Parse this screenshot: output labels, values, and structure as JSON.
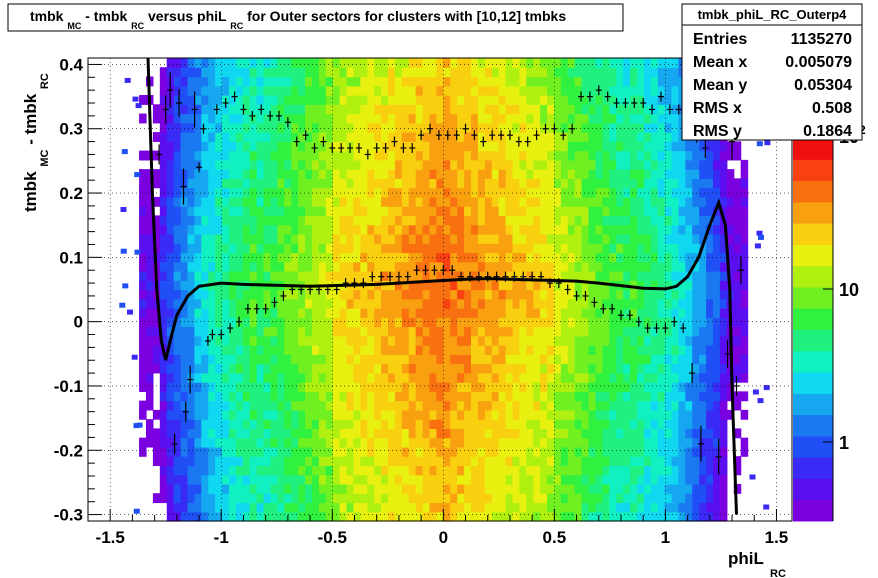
{
  "title": {
    "parts": [
      "tmbk",
      "MC",
      " - tmbk",
      "RC",
      " versus phiL",
      "RC",
      " for Outer sectors for clusters with [10,12] tmbks"
    ]
  },
  "stats": {
    "name": "tmbk_phiL_RC_Outerp4",
    "rows": [
      {
        "label": "Entries",
        "value": "1135270"
      },
      {
        "label": "Mean x",
        "value": "0.005079"
      },
      {
        "label": "Mean y",
        "value": "0.05304"
      },
      {
        "label": "RMS x",
        "value": "0.508"
      },
      {
        "label": "RMS y",
        "value": "0.1864"
      }
    ]
  },
  "axes": {
    "xlabel_main": "phiL",
    "xlabel_sub": "RC",
    "ylabel_main1": "tmbk",
    "ylabel_sub1": "MC",
    "ylabel_main2": " - tmbk",
    "ylabel_sub2": "RC",
    "xticks": [
      "-1.5",
      "-1",
      "-0.5",
      "0",
      "0.5",
      "1",
      "1.5"
    ],
    "yticks": [
      "-0.3",
      "-0.2",
      "-0.1",
      "0",
      "0.1",
      "0.2",
      "0.3",
      "0.4"
    ],
    "zticks": [
      "1",
      "10",
      "10"
    ],
    "zexp": "2"
  },
  "colors": {
    "frame": "#000000",
    "profile": "#000000",
    "fit": "#000000"
  },
  "chart_data": {
    "type": "heatmap",
    "title": "tmbkMC - tmbkRC versus phiLRC for Outer sectors for clusters with [10,12] tmbks",
    "xlabel": "phiLRC",
    "ylabel": "tmbkMC - tmbkRC",
    "xlim": [
      -1.6,
      1.57
    ],
    "ylim": [
      -0.31,
      0.41
    ],
    "zscale": "log",
    "zlim": [
      0.3,
      250
    ],
    "profile_points": [
      [
        -1.28,
        0.26
      ],
      [
        -1.25,
        0.33
      ],
      [
        -1.23,
        0.36
      ],
      [
        -1.21,
        -0.19
      ],
      [
        -1.19,
        0.34
      ],
      [
        -1.17,
        0.21
      ],
      [
        -1.16,
        -0.14
      ],
      [
        -1.14,
        -0.09
      ],
      [
        -1.12,
        0.33
      ],
      [
        -1.1,
        0.24
      ],
      [
        -1.08,
        0.3
      ],
      [
        -1.06,
        -0.03
      ],
      [
        -1.04,
        -0.02
      ],
      [
        -1.02,
        0.33
      ],
      [
        -1.0,
        -0.02
      ],
      [
        -0.98,
        0.34
      ],
      [
        -0.96,
        -0.01
      ],
      [
        -0.94,
        0.35
      ],
      [
        -0.92,
        0.0
      ],
      [
        -0.9,
        0.33
      ],
      [
        -0.88,
        0.02
      ],
      [
        -0.86,
        0.32
      ],
      [
        -0.84,
        0.02
      ],
      [
        -0.82,
        0.33
      ],
      [
        -0.8,
        0.02
      ],
      [
        -0.78,
        0.32
      ],
      [
        -0.76,
        0.03
      ],
      [
        -0.74,
        0.32
      ],
      [
        -0.72,
        0.04
      ],
      [
        -0.7,
        0.31
      ],
      [
        -0.68,
        0.05
      ],
      [
        -0.66,
        0.28
      ],
      [
        -0.64,
        0.05
      ],
      [
        -0.62,
        0.29
      ],
      [
        -0.6,
        0.05
      ],
      [
        -0.58,
        0.27
      ],
      [
        -0.56,
        0.05
      ],
      [
        -0.54,
        0.28
      ],
      [
        -0.52,
        0.05
      ],
      [
        -0.5,
        0.27
      ],
      [
        -0.48,
        0.05
      ],
      [
        -0.46,
        0.27
      ],
      [
        -0.44,
        0.06
      ],
      [
        -0.42,
        0.27
      ],
      [
        -0.4,
        0.06
      ],
      [
        -0.38,
        0.27
      ],
      [
        -0.36,
        0.06
      ],
      [
        -0.34,
        0.26
      ],
      [
        -0.32,
        0.07
      ],
      [
        -0.3,
        0.27
      ],
      [
        -0.28,
        0.07
      ],
      [
        -0.26,
        0.27
      ],
      [
        -0.24,
        0.07
      ],
      [
        -0.22,
        0.28
      ],
      [
        -0.2,
        0.07
      ],
      [
        -0.18,
        0.27
      ],
      [
        -0.16,
        0.07
      ],
      [
        -0.14,
        0.27
      ],
      [
        -0.12,
        0.08
      ],
      [
        -0.1,
        0.29
      ],
      [
        -0.08,
        0.08
      ],
      [
        -0.06,
        0.3
      ],
      [
        -0.04,
        0.08
      ],
      [
        -0.02,
        0.29
      ],
      [
        0.0,
        0.08
      ],
      [
        0.02,
        0.29
      ],
      [
        0.04,
        0.08
      ],
      [
        0.06,
        0.29
      ],
      [
        0.08,
        0.07
      ],
      [
        0.1,
        0.3
      ],
      [
        0.12,
        0.07
      ],
      [
        0.14,
        0.29
      ],
      [
        0.16,
        0.07
      ],
      [
        0.18,
        0.28
      ],
      [
        0.2,
        0.07
      ],
      [
        0.22,
        0.29
      ],
      [
        0.24,
        0.07
      ],
      [
        0.26,
        0.29
      ],
      [
        0.28,
        0.07
      ],
      [
        0.3,
        0.29
      ],
      [
        0.32,
        0.07
      ],
      [
        0.34,
        0.28
      ],
      [
        0.36,
        0.07
      ],
      [
        0.38,
        0.28
      ],
      [
        0.4,
        0.07
      ],
      [
        0.42,
        0.29
      ],
      [
        0.44,
        0.07
      ],
      [
        0.46,
        0.3
      ],
      [
        0.48,
        0.06
      ],
      [
        0.5,
        0.3
      ],
      [
        0.52,
        0.06
      ],
      [
        0.54,
        0.29
      ],
      [
        0.56,
        0.05
      ],
      [
        0.58,
        0.3
      ],
      [
        0.6,
        0.04
      ],
      [
        0.62,
        0.35
      ],
      [
        0.64,
        0.04
      ],
      [
        0.66,
        0.35
      ],
      [
        0.68,
        0.03
      ],
      [
        0.7,
        0.36
      ],
      [
        0.72,
        0.02
      ],
      [
        0.74,
        0.35
      ],
      [
        0.76,
        0.02
      ],
      [
        0.78,
        0.34
      ],
      [
        0.8,
        0.01
      ],
      [
        0.82,
        0.34
      ],
      [
        0.84,
        0.01
      ],
      [
        0.86,
        0.34
      ],
      [
        0.88,
        0.0
      ],
      [
        0.9,
        0.34
      ],
      [
        0.92,
        -0.01
      ],
      [
        0.94,
        0.33
      ],
      [
        0.96,
        -0.01
      ],
      [
        0.98,
        0.35
      ],
      [
        1.0,
        -0.01
      ],
      [
        1.02,
        0.33
      ],
      [
        1.04,
        0.0
      ],
      [
        1.06,
        0.33
      ],
      [
        1.08,
        -0.01
      ],
      [
        1.1,
        0.3
      ],
      [
        1.12,
        -0.08
      ],
      [
        1.14,
        0.3
      ],
      [
        1.16,
        -0.19
      ],
      [
        1.18,
        0.27
      ],
      [
        1.22,
        0.33
      ],
      [
        1.24,
        -0.21
      ],
      [
        1.26,
        0.3
      ],
      [
        1.28,
        -0.05
      ],
      [
        1.3,
        0.28
      ],
      [
        1.32,
        -0.1
      ],
      [
        1.34,
        0.08
      ]
    ],
    "fit_curve": [
      [
        -1.33,
        0.41
      ],
      [
        -1.31,
        0.2
      ],
      [
        -1.29,
        0.05
      ],
      [
        -1.27,
        -0.03
      ],
      [
        -1.25,
        -0.06
      ],
      [
        -1.23,
        -0.03
      ],
      [
        -1.2,
        0.01
      ],
      [
        -1.15,
        0.04
      ],
      [
        -1.1,
        0.055
      ],
      [
        -1.0,
        0.06
      ],
      [
        -0.9,
        0.058
      ],
      [
        -0.8,
        0.057
      ],
      [
        -0.7,
        0.056
      ],
      [
        -0.6,
        0.055
      ],
      [
        -0.5,
        0.056
      ],
      [
        -0.4,
        0.057
      ],
      [
        -0.3,
        0.058
      ],
      [
        -0.2,
        0.06
      ],
      [
        -0.1,
        0.062
      ],
      [
        0.0,
        0.064
      ],
      [
        0.1,
        0.066
      ],
      [
        0.2,
        0.067
      ],
      [
        0.3,
        0.066
      ],
      [
        0.4,
        0.065
      ],
      [
        0.5,
        0.064
      ],
      [
        0.6,
        0.063
      ],
      [
        0.7,
        0.06
      ],
      [
        0.8,
        0.056
      ],
      [
        0.9,
        0.052
      ],
      [
        1.0,
        0.051
      ],
      [
        1.05,
        0.055
      ],
      [
        1.1,
        0.07
      ],
      [
        1.15,
        0.1
      ],
      [
        1.2,
        0.15
      ],
      [
        1.24,
        0.185
      ],
      [
        1.27,
        0.15
      ],
      [
        1.29,
        0.05
      ],
      [
        1.3,
        -0.1
      ],
      [
        1.32,
        -0.3
      ]
    ]
  }
}
